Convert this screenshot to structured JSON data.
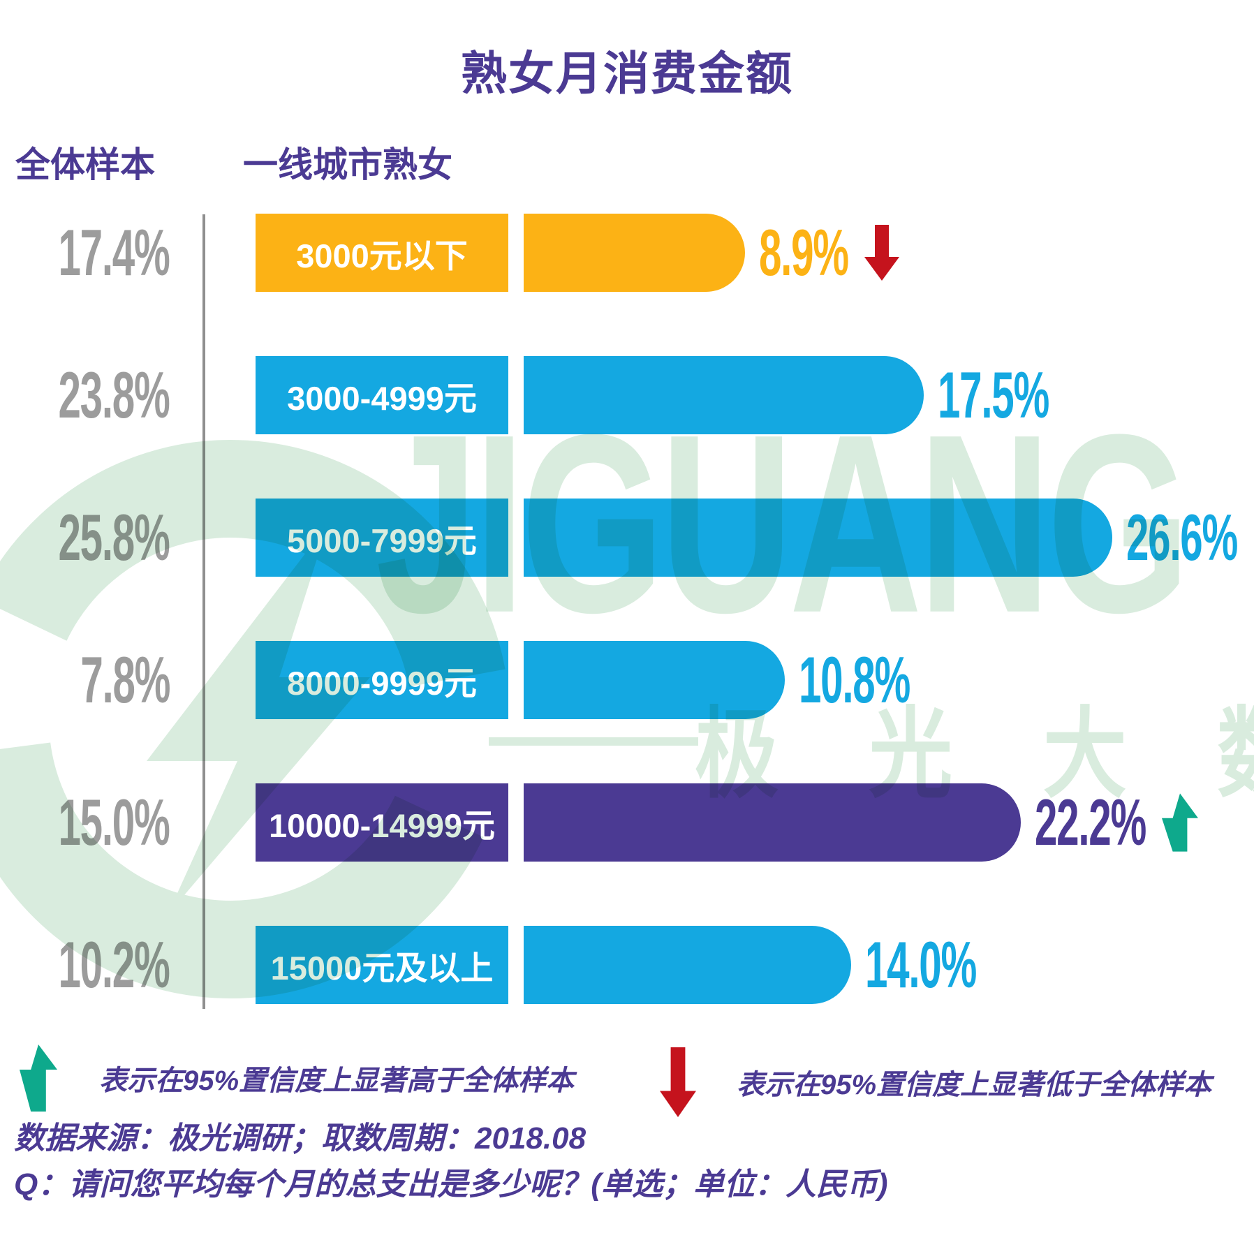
{
  "title": "熟女月消费金额",
  "columns": {
    "overall": "全体样本",
    "tier1": "一线城市熟女"
  },
  "rows": [
    {
      "label": "3000元以下",
      "overall": "17.4%",
      "value": "8.9%",
      "v": 8.9,
      "color": "#FCB215",
      "arrow": "down"
    },
    {
      "label": "3000-4999元",
      "overall": "23.8%",
      "value": "17.5%",
      "v": 17.5,
      "color": "#14A8E1",
      "arrow": ""
    },
    {
      "label": "5000-7999元",
      "overall": "25.8%",
      "value": "26.6%",
      "v": 26.6,
      "color": "#14A8E1",
      "arrow": ""
    },
    {
      "label": "8000-9999元",
      "overall": "7.8%",
      "value": "10.8%",
      "v": 10.8,
      "color": "#14A8E1",
      "arrow": ""
    },
    {
      "label": "10000-14999元",
      "overall": "15.0%",
      "value": "22.2%",
      "v": 22.2,
      "color": "#4B3A93",
      "arrow": "up"
    },
    {
      "label": "15000元及以上",
      "overall": "10.2%",
      "value": "14.0%",
      "v": 14.0,
      "color": "#14A8E1",
      "arrow": ""
    }
  ],
  "legend": {
    "up_text": "表示在95%置信度上显著高于全体样本",
    "down_text": "表示在95%置信度上显著低于全体样本"
  },
  "source": "数据来源：极光调研；取数周期：2018.08",
  "question": "Q：请问您平均每个月的总支出是多少呢？(单选；单位：人民币)",
  "watermark": {
    "brand": "JIGUANG",
    "cn": "极 光 大 数 据"
  },
  "colors": {
    "purple": "#4B3A93",
    "blue": "#14A8E1",
    "orange": "#FCB215",
    "gray_text": "#9C9C9C",
    "divider": "#8F8F8F",
    "arrow_up_green": "#0EA98C",
    "arrow_down_red": "#C5131D",
    "watermark_mint": "#D9ECDE"
  },
  "chart_data": {
    "type": "bar",
    "orientation": "horizontal",
    "title": "熟女月消费金额",
    "unit": "%",
    "categories": [
      "3000元以下",
      "3000-4999元",
      "5000-7999元",
      "8000-9999元",
      "10000-14999元",
      "15000元及以上"
    ],
    "series": [
      {
        "name": "全体样本",
        "values": [
          17.4,
          23.8,
          25.8,
          7.8,
          15.0,
          10.2
        ]
      },
      {
        "name": "一线城市熟女",
        "values": [
          8.9,
          17.5,
          26.6,
          10.8,
          22.2,
          14.0
        ]
      }
    ],
    "annotations": [
      {
        "category": "3000元以下",
        "series": "一线城市熟女",
        "arrow": "down",
        "note": "在95%置信度上显著低于全体样本"
      },
      {
        "category": "10000-14999元",
        "series": "一线城市熟女",
        "arrow": "up",
        "note": "在95%置信度上显著高于全体样本"
      }
    ],
    "legend_position": "bottom",
    "grid": false
  }
}
